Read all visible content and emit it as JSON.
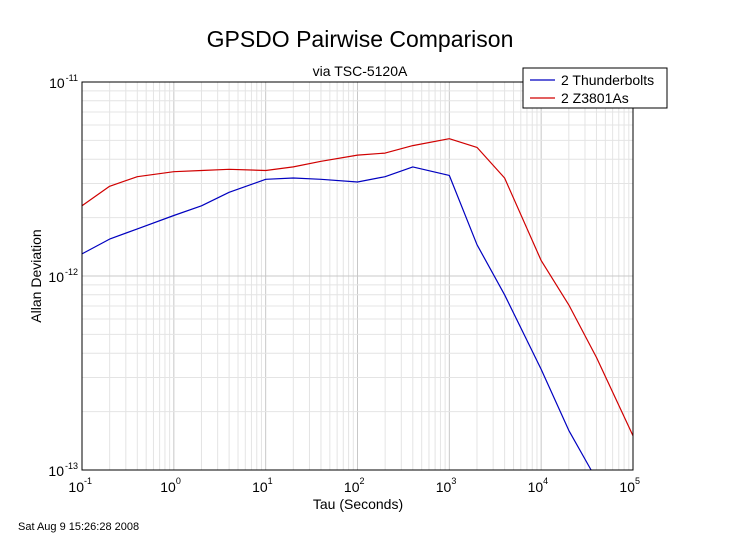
{
  "chart_data": {
    "type": "line",
    "title": "GPSDO Pairwise Comparison",
    "subtitle": "via TSC-5120A",
    "xlabel": "Tau (Seconds)",
    "ylabel": "Allan Deviation",
    "x_scale": "log",
    "y_scale": "log",
    "xlim": [
      0.1,
      100000
    ],
    "ylim": [
      1e-13,
      1e-11
    ],
    "grid": true,
    "legend_position": "top-right",
    "x_ticks": [
      {
        "base": "10",
        "exp": "-1"
      },
      {
        "base": "10",
        "exp": "0"
      },
      {
        "base": "10",
        "exp": "1"
      },
      {
        "base": "10",
        "exp": "2"
      },
      {
        "base": "10",
        "exp": "3"
      },
      {
        "base": "10",
        "exp": "4"
      },
      {
        "base": "10",
        "exp": "5"
      }
    ],
    "y_ticks": [
      {
        "base": "10",
        "exp": "-13"
      },
      {
        "base": "10",
        "exp": "-12"
      },
      {
        "base": "10",
        "exp": "-11"
      }
    ],
    "series": [
      {
        "name": "2 Thunderbolts",
        "color": "#0000c0",
        "points": [
          [
            0.1,
            1.3e-12
          ],
          [
            0.2,
            1.55e-12
          ],
          [
            0.4,
            1.75e-12
          ],
          [
            1,
            2.05e-12
          ],
          [
            2,
            2.3e-12
          ],
          [
            4,
            2.7e-12
          ],
          [
            10,
            3.15e-12
          ],
          [
            20,
            3.2e-12
          ],
          [
            40,
            3.15e-12
          ],
          [
            100,
            3.05e-12
          ],
          [
            200,
            3.25e-12
          ],
          [
            400,
            3.65e-12
          ],
          [
            1000,
            3.3e-12
          ],
          [
            2000,
            1.45e-12
          ],
          [
            4000,
            8e-13
          ],
          [
            10000,
            3.3e-13
          ],
          [
            20000,
            1.6e-13
          ],
          [
            35000,
            1e-13
          ]
        ]
      },
      {
        "name": "2 Z3801As",
        "color": "#d00000",
        "points": [
          [
            0.1,
            2.3e-12
          ],
          [
            0.2,
            2.9e-12
          ],
          [
            0.4,
            3.25e-12
          ],
          [
            1,
            3.45e-12
          ],
          [
            2,
            3.5e-12
          ],
          [
            4,
            3.55e-12
          ],
          [
            10,
            3.5e-12
          ],
          [
            20,
            3.65e-12
          ],
          [
            40,
            3.9e-12
          ],
          [
            100,
            4.2e-12
          ],
          [
            200,
            4.3e-12
          ],
          [
            400,
            4.7e-12
          ],
          [
            1000,
            5.1e-12
          ],
          [
            2000,
            4.6e-12
          ],
          [
            4000,
            3.2e-12
          ],
          [
            10000,
            1.2e-12
          ],
          [
            20000,
            7.1e-13
          ],
          [
            40000,
            3.8e-13
          ],
          [
            100000,
            1.5e-13
          ]
        ]
      }
    ]
  },
  "footer": {
    "timestamp": "Sat Aug  9 15:26:28 2008"
  }
}
